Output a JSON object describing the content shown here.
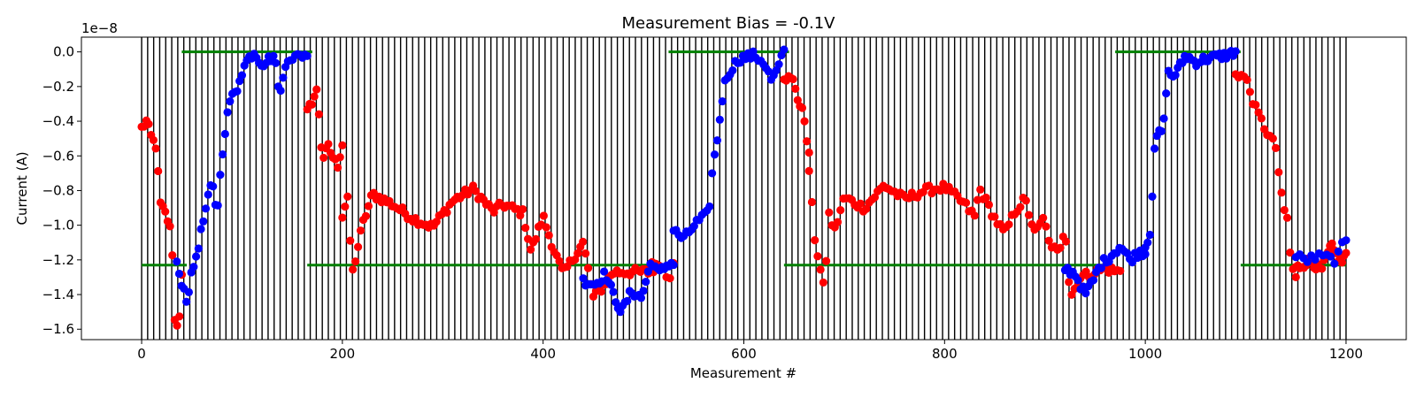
{
  "chart_data": {
    "type": "scatter",
    "title": "Measurement Bias = -0.1V",
    "xlabel": "Measurement #",
    "ylabel": "Current (A)",
    "y_offset_text": "1e−8",
    "xlim": [
      -60,
      1260
    ],
    "ylim": [
      -1.66,
      0.085
    ],
    "y_scale_factor": 1e-08,
    "x_ticks": [
      0,
      200,
      400,
      600,
      800,
      1000,
      1200
    ],
    "x_tick_labels": [
      "0",
      "200",
      "400",
      "600",
      "800",
      "1000",
      "1200"
    ],
    "y_ticks": [
      0.0,
      -0.2,
      -0.4,
      -0.6,
      -0.8,
      -1.0,
      -1.2,
      -1.4,
      -1.6
    ],
    "y_tick_labels": [
      "0.0",
      "−0.2",
      "−0.4",
      "−0.6",
      "−0.8",
      "−1.0",
      "−1.2",
      "−1.4",
      "−1.6"
    ],
    "vertical_lines": {
      "color": "#000000",
      "x_start": 0,
      "x_end": 1200,
      "spacing": 6
    },
    "reference_segments": {
      "color": "#008000",
      "segments": [
        {
          "y": 0.0,
          "x": [
            40,
            170
          ]
        },
        {
          "y": 0.0,
          "x": [
            525,
            645
          ]
        },
        {
          "y": 0.0,
          "x": [
            970,
            1095
          ]
        },
        {
          "y": -1.23,
          "x": [
            0,
            45
          ]
        },
        {
          "y": -1.23,
          "x": [
            165,
            515
          ]
        },
        {
          "y": -1.23,
          "x": [
            640,
            960
          ]
        },
        {
          "y": -1.23,
          "x": [
            1095,
            1200
          ]
        }
      ]
    },
    "series": [
      {
        "color": "#ff0000",
        "segments": [
          {
            "x": [
              0,
              40
            ],
            "anchors": [
              [
                0,
                -0.44
              ],
              [
                5,
                -0.4
              ],
              [
                10,
                -0.5
              ],
              [
                15,
                -0.55
              ],
              [
                18,
                -0.87
              ],
              [
                25,
                -0.95
              ],
              [
                30,
                -1.06
              ],
              [
                33,
                -1.56
              ],
              [
                37,
                -1.57
              ],
              [
                40,
                -1.3
              ]
            ],
            "n": 18
          },
          {
            "x": [
              165,
              200
            ],
            "anchors": [
              [
                165,
                -0.35
              ],
              [
                170,
                -0.28
              ],
              [
                175,
                -0.22
              ],
              [
                180,
                -0.62
              ],
              [
                186,
                -0.55
              ],
              [
                195,
                -0.66
              ],
              [
                200,
                -0.53
              ]
            ],
            "n": 16
          },
          {
            "x": [
              200,
              510
            ],
            "anchors": [
              [
                200,
                -0.95
              ],
              [
                205,
                -0.84
              ],
              [
                210,
                -1.28
              ],
              [
                220,
                -1.0
              ],
              [
                230,
                -0.82
              ],
              [
                250,
                -0.88
              ],
              [
                270,
                -0.96
              ],
              [
                290,
                -1.01
              ],
              [
                310,
                -0.86
              ],
              [
                330,
                -0.79
              ],
              [
                350,
                -0.92
              ],
              [
                360,
                -0.88
              ],
              [
                380,
                -0.93
              ],
              [
                388,
                -1.15
              ],
              [
                400,
                -0.95
              ],
              [
                410,
                -1.13
              ],
              [
                420,
                -1.28
              ],
              [
                440,
                -1.1
              ],
              [
                450,
                -1.42
              ],
              [
                460,
                -1.35
              ],
              [
                470,
                -1.27
              ]
            ],
            "n": 120
          },
          {
            "x": [
              505,
              530
            ],
            "anchors": [
              [
                505,
                -1.25
              ],
              [
                515,
                -1.2
              ],
              [
                525,
                -1.32
              ],
              [
                530,
                -1.2
              ]
            ],
            "n": 8
          },
          {
            "x": [
              640,
              665
            ],
            "anchors": [
              [
                640,
                -0.14
              ],
              [
                650,
                -0.17
              ],
              [
                655,
                -0.3
              ],
              [
                660,
                -0.37
              ],
              [
                665,
                -0.6
              ]
            ],
            "n": 12
          },
          {
            "x": [
              665,
              975
            ],
            "anchors": [
              [
                665,
                -0.68
              ],
              [
                670,
                -1.05
              ],
              [
                680,
                -1.38
              ],
              [
                685,
                -0.93
              ],
              [
                690,
                -1.04
              ],
              [
                700,
                -0.84
              ],
              [
                720,
                -0.9
              ],
              [
                740,
                -0.77
              ],
              [
                760,
                -0.85
              ],
              [
                780,
                -0.8
              ],
              [
                800,
                -0.78
              ],
              [
                820,
                -0.88
              ],
              [
                830,
                -0.95
              ],
              [
                835,
                -0.79
              ],
              [
                850,
                -0.96
              ],
              [
                860,
                -1.05
              ],
              [
                870,
                -0.92
              ],
              [
                880,
                -0.85
              ],
              [
                890,
                -1.05
              ],
              [
                900,
                -0.95
              ],
              [
                905,
                -1.15
              ],
              [
                915,
                -1.12
              ],
              [
                920,
                -1.0
              ],
              [
                925,
                -1.42
              ],
              [
                935,
                -1.3
              ],
              [
                960,
                -1.25
              ],
              [
                975,
                -1.27
              ]
            ],
            "n": 110
          },
          {
            "x": [
              1090,
              1150
            ],
            "anchors": [
              [
                1090,
                -0.12
              ],
              [
                1100,
                -0.15
              ],
              [
                1110,
                -0.33
              ],
              [
                1120,
                -0.45
              ],
              [
                1130,
                -0.55
              ],
              [
                1138,
                -0.95
              ],
              [
                1140,
                -0.85
              ],
              [
                1145,
                -1.22
              ],
              [
                1150,
                -1.3
              ]
            ],
            "n": 22
          },
          {
            "x": [
              1150,
              1200
            ],
            "anchors": [
              [
                1150,
                -1.25
              ],
              [
                1165,
                -1.2
              ],
              [
                1175,
                -1.27
              ],
              [
                1185,
                -1.12
              ],
              [
                1195,
                -1.22
              ],
              [
                1200,
                -1.16
              ]
            ],
            "n": 26
          }
        ]
      },
      {
        "color": "#0000ff",
        "segments": [
          {
            "x": [
              35,
              165
            ],
            "anchors": [
              [
                35,
                -1.23
              ],
              [
                45,
                -1.43
              ],
              [
                50,
                -1.28
              ],
              [
                55,
                -1.16
              ],
              [
                62,
                -0.96
              ],
              [
                70,
                -0.75
              ],
              [
                75,
                -0.93
              ],
              [
                82,
                -0.49
              ],
              [
                88,
                -0.28
              ],
              [
                95,
                -0.22
              ],
              [
                98,
                -0.14
              ],
              [
                105,
                -0.05
              ],
              [
                112,
                0.0
              ],
              [
                120,
                -0.07
              ],
              [
                132,
                -0.02
              ],
              [
                138,
                -0.25
              ],
              [
                145,
                -0.03
              ],
              [
                155,
                -0.03
              ],
              [
                165,
                -0.01
              ]
            ],
            "n": 55
          },
          {
            "x": [
              440,
              530
            ],
            "anchors": [
              [
                440,
                -1.32
              ],
              [
                452,
                -1.34
              ],
              [
                462,
                -1.28
              ],
              [
                470,
                -1.4
              ],
              [
                478,
                -1.5
              ],
              [
                488,
                -1.38
              ],
              [
                498,
                -1.42
              ],
              [
                508,
                -1.2
              ],
              [
                515,
                -1.28
              ],
              [
                525,
                -1.22
              ]
            ],
            "n": 40
          },
          {
            "x": [
              530,
              640
            ],
            "anchors": [
              [
                530,
                -1.03
              ],
              [
                540,
                -1.08
              ],
              [
                552,
                -0.99
              ],
              [
                565,
                -0.93
              ],
              [
                568,
                -0.72
              ],
              [
                575,
                -0.44
              ],
              [
                580,
                -0.2
              ],
              [
                585,
                -0.12
              ],
              [
                595,
                -0.04
              ],
              [
                610,
                -0.02
              ],
              [
                620,
                -0.06
              ],
              [
                628,
                -0.17
              ],
              [
                635,
                -0.08
              ],
              [
                640,
                0.0
              ]
            ],
            "n": 44
          },
          {
            "x": [
              920,
              1000
            ],
            "anchors": [
              [
                920,
                -1.25
              ],
              [
                930,
                -1.28
              ],
              [
                940,
                -1.4
              ],
              [
                948,
                -1.32
              ],
              [
                955,
                -1.23
              ],
              [
                965,
                -1.18
              ],
              [
                975,
                -1.12
              ],
              [
                985,
                -1.2
              ],
              [
                995,
                -1.15
              ],
              [
                1000,
                -1.16
              ]
            ],
            "n": 32
          },
          {
            "x": [
              1000,
              1090
            ],
            "anchors": [
              [
                1000,
                -1.12
              ],
              [
                1005,
                -1.03
              ],
              [
                1010,
                -0.5
              ],
              [
                1018,
                -0.44
              ],
              [
                1022,
                -0.12
              ],
              [
                1028,
                -0.14
              ],
              [
                1033,
                -0.1
              ],
              [
                1040,
                -0.02
              ],
              [
                1050,
                -0.06
              ],
              [
                1060,
                -0.04
              ],
              [
                1070,
                -0.03
              ],
              [
                1080,
                -0.02
              ],
              [
                1090,
                0.0
              ]
            ],
            "n": 40
          },
          {
            "x": [
              1150,
              1200
            ],
            "anchors": [
              [
                1150,
                -1.18
              ],
              [
                1160,
                -1.2
              ],
              [
                1175,
                -1.18
              ],
              [
                1190,
                -1.2
              ],
              [
                1198,
                -1.1
              ]
            ],
            "n": 14
          }
        ]
      }
    ]
  }
}
